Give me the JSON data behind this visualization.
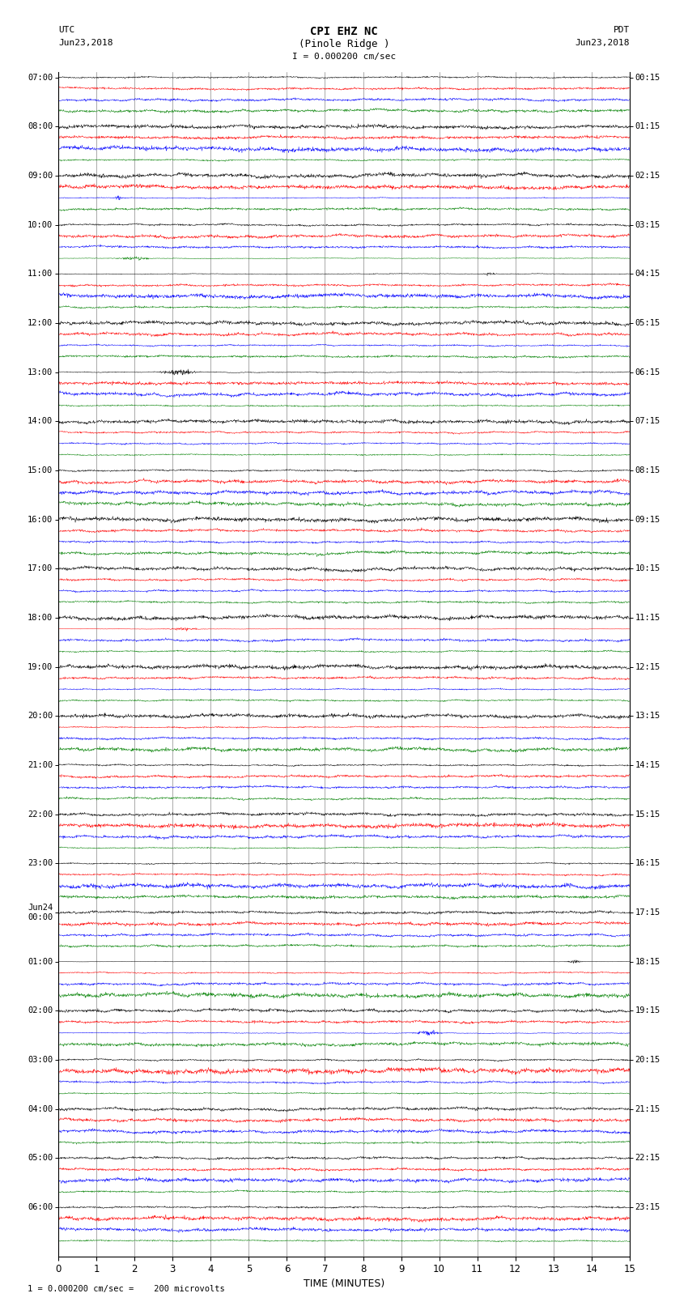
{
  "title_line1": "CPI EHZ NC",
  "title_line2": "(Pinole Ridge )",
  "scale_label": "I = 0.000200 cm/sec",
  "left_header": "UTC",
  "left_date": "Jun23,2018",
  "right_header": "PDT",
  "right_date": "Jun23,2018",
  "xlabel": "TIME (MINUTES)",
  "footer": "1 = 0.000200 cm/sec =    200 microvolts",
  "xmin": 0,
  "xmax": 15,
  "trace_colors": [
    "black",
    "red",
    "blue",
    "green"
  ],
  "background_color": "white",
  "grid_color": "#888888",
  "utc_labels": [
    "07:00",
    "08:00",
    "09:00",
    "10:00",
    "11:00",
    "12:00",
    "13:00",
    "14:00",
    "15:00",
    "16:00",
    "17:00",
    "18:00",
    "19:00",
    "20:00",
    "21:00",
    "22:00",
    "23:00",
    "Jun24\n00:00",
    "01:00",
    "02:00",
    "03:00",
    "04:00",
    "05:00",
    "06:00"
  ],
  "pdt_labels": [
    "00:15",
    "01:15",
    "02:15",
    "03:15",
    "04:15",
    "05:15",
    "06:15",
    "07:15",
    "08:15",
    "09:15",
    "10:15",
    "11:15",
    "12:15",
    "13:15",
    "14:15",
    "15:15",
    "16:15",
    "17:15",
    "18:15",
    "19:15",
    "20:15",
    "21:15",
    "22:15",
    "23:15"
  ],
  "n_hours": 24,
  "traces_per_hour": 4,
  "noise_amplitude": 0.12,
  "figsize": [
    8.5,
    16.13
  ],
  "dpi": 100
}
